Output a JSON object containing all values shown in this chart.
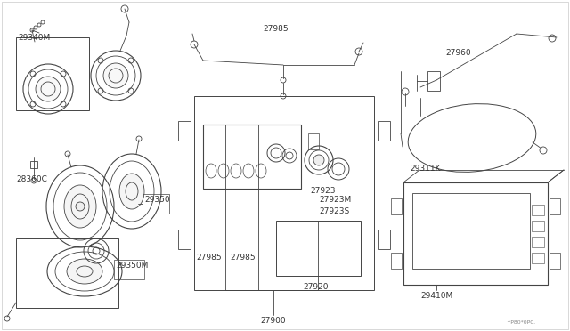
{
  "bg_color": "#ffffff",
  "line_color": "#444444",
  "text_color": "#333333",
  "label_color": "#222222",
  "border_color": "#cccccc",
  "font_size": 6.5,
  "font_size_small": 5.0,
  "parts": {
    "top_tweeter_label": "29340M",
    "connector_label": "28360C",
    "mid_speaker_label": "29350",
    "btm_speaker_label": "29350M",
    "ant_wire_label": "27985",
    "radio_label1": "27985",
    "radio_label2": "27985",
    "knob1_label": "27923",
    "knob2_label": "27923M",
    "knob3_label": "27923S",
    "sub_label": "27920",
    "unit_label": "27900",
    "ant_label": "27960",
    "cable_label": "29311K",
    "amp_label": "29410M",
    "watermark": "^P80*0P0."
  }
}
